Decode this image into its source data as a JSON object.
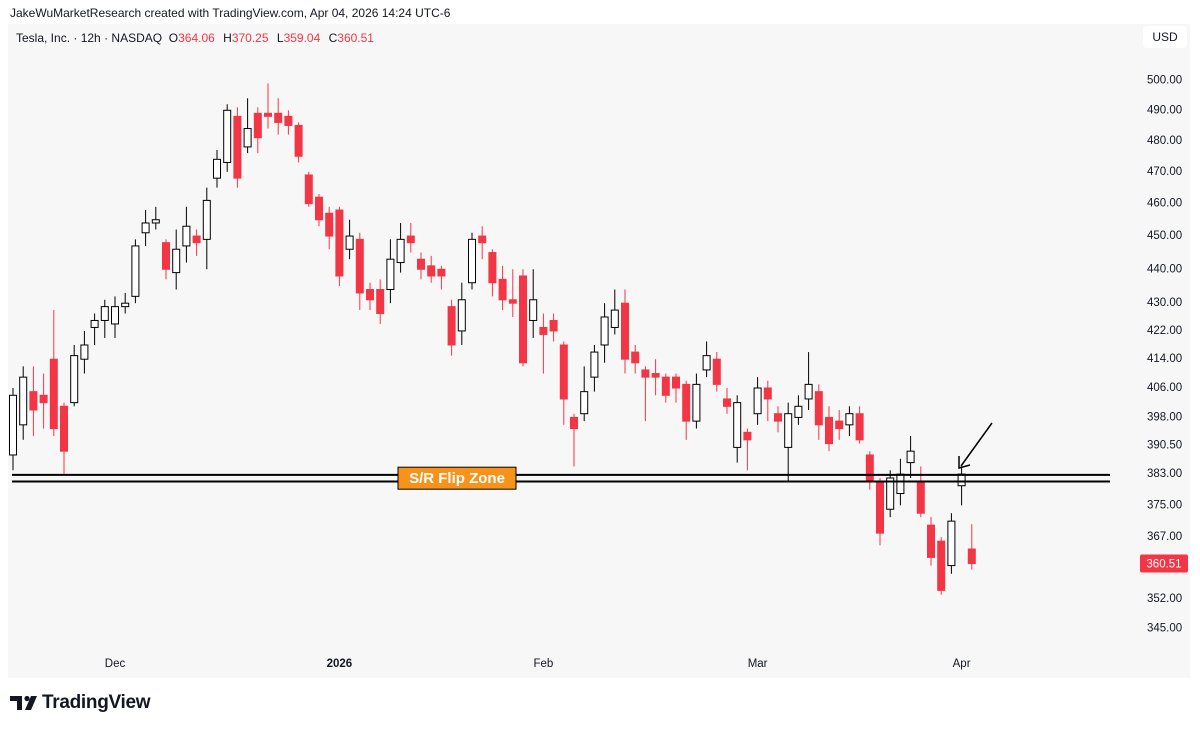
{
  "top_caption": "JakeWuMarketResearch created with TradingView.com, Apr 04, 2026 14:24 UTC-6",
  "footer_logo": "TradingView",
  "chart_data": {
    "type": "candlestick",
    "title": "Tesla, Inc.",
    "interval": "12h",
    "exchange": "NASDAQ",
    "ohlc_labels": [
      "O",
      "H",
      "L",
      "C"
    ],
    "currency": "USD",
    "log_scale": true,
    "grid": false,
    "up_color": "#ffffff",
    "up_border": "#000000",
    "down_color": "#f23645",
    "categories": [
      null,
      null,
      null,
      null,
      null,
      null,
      null,
      null,
      null,
      null,
      "Dec",
      null,
      null,
      null,
      null,
      null,
      null,
      null,
      null,
      null,
      null,
      null,
      null,
      null,
      null,
      null,
      null,
      null,
      null,
      null,
      null,
      null,
      "2026",
      null,
      null,
      null,
      null,
      null,
      null,
      null,
      null,
      null,
      null,
      null,
      null,
      null,
      null,
      null,
      null,
      null,
      null,
      null,
      "Feb",
      null,
      null,
      null,
      null,
      null,
      null,
      null,
      null,
      null,
      null,
      null,
      null,
      null,
      null,
      null,
      null,
      null,
      null,
      null,
      null,
      "Mar",
      null,
      null,
      null,
      null,
      null,
      null,
      null,
      null,
      null,
      null,
      null,
      null,
      null,
      null,
      null,
      null,
      null,
      null,
      null,
      "Apr",
      null
    ],
    "open": [
      388,
      396,
      405,
      404,
      414,
      401,
      402,
      414,
      423,
      425,
      424,
      429,
      432,
      451,
      454,
      448,
      439,
      447,
      450,
      449,
      468,
      473,
      488,
      478,
      489,
      489,
      489,
      488,
      485,
      469,
      462,
      457,
      458,
      446,
      449,
      434,
      434,
      434,
      442,
      450,
      443,
      441,
      440,
      429,
      422,
      436,
      450,
      445,
      437,
      431,
      438,
      425,
      423,
      425,
      418,
      398,
      399,
      409,
      418,
      423,
      430,
      416,
      411,
      410,
      409,
      409,
      407,
      397,
      411,
      414,
      403,
      390,
      394,
      399,
      406,
      399,
      390,
      398,
      403,
      405,
      398,
      397,
      396,
      399,
      388,
      381,
      374,
      378,
      386,
      381,
      370,
      366,
      360,
      380,
      364.06
    ],
    "high": [
      406,
      412,
      412,
      410,
      428,
      402,
      418,
      422,
      427,
      431,
      432,
      433,
      449,
      458,
      459,
      449,
      452,
      459,
      452,
      465,
      477,
      492,
      491,
      494,
      491,
      499,
      494,
      490,
      486,
      470,
      463,
      459,
      459,
      455,
      451,
      436,
      437,
      449,
      454,
      454,
      445,
      444,
      441,
      431,
      436,
      451,
      453,
      446,
      441,
      440,
      440,
      440,
      427,
      427,
      419,
      399,
      412,
      418,
      430,
      434,
      434,
      418,
      412,
      414,
      410,
      410,
      408,
      410,
      419,
      416,
      406,
      404,
      395,
      409,
      408,
      401,
      402,
      404,
      416,
      407,
      401,
      400,
      401,
      401,
      389,
      382,
      384,
      387,
      393,
      385,
      372,
      367,
      373,
      385,
      370.25
    ],
    "low": [
      384,
      392,
      393,
      395,
      393,
      383,
      401,
      410,
      418,
      420,
      420,
      427,
      430,
      447,
      452,
      437,
      434,
      442,
      444,
      440,
      465,
      470,
      465,
      476,
      476,
      484,
      482,
      482,
      473,
      459,
      453,
      446,
      435,
      443,
      428,
      428,
      424,
      430,
      439,
      445,
      437,
      436,
      434,
      415,
      418,
      434,
      443,
      432,
      428,
      426,
      412,
      420,
      410,
      419,
      396,
      385,
      397,
      405,
      413,
      421,
      410,
      410,
      397,
      404,
      402,
      402,
      392,
      395,
      409,
      405,
      399,
      386,
      384,
      396,
      397,
      394,
      381,
      396,
      400,
      392,
      389,
      392,
      393,
      391,
      379,
      365,
      372,
      375,
      382,
      372,
      360,
      353,
      358,
      375,
      359.04
    ],
    "close": [
      404,
      409,
      400,
      402,
      395,
      389,
      415,
      418,
      425,
      429,
      429,
      430,
      447,
      454,
      455,
      440,
      446,
      453,
      448,
      461,
      474,
      490,
      468,
      484,
      481,
      488,
      486,
      485,
      475,
      460,
      455,
      450,
      438,
      450,
      433,
      431,
      427,
      443,
      449,
      448,
      440,
      438,
      438,
      418,
      431,
      449,
      448,
      436,
      431,
      430,
      413,
      431,
      421,
      422,
      403,
      395,
      405,
      416,
      426,
      428,
      414,
      413,
      409,
      409,
      404,
      406,
      397,
      407,
      415,
      407,
      401,
      402,
      392,
      406,
      403,
      397,
      399,
      401,
      407,
      396,
      391,
      395,
      399,
      392,
      381,
      368,
      382,
      383,
      389,
      373,
      362,
      354,
      371,
      383,
      360.51
    ],
    "ylim": [
      340,
      512.5
    ],
    "yticks": [
      {
        "value": 345,
        "label": "345.00"
      },
      {
        "value": 352,
        "label": "352.00"
      },
      {
        "value": 360,
        "label": "360.00"
      },
      {
        "value": 367,
        "label": "367.00"
      },
      {
        "value": 375,
        "label": "375.00"
      },
      {
        "value": 383,
        "label": "383.00"
      },
      {
        "value": 390.5,
        "label": "390.50"
      },
      {
        "value": 398,
        "label": "398.00"
      },
      {
        "value": 406,
        "label": "406.00"
      },
      {
        "value": 414,
        "label": "414.00"
      },
      {
        "value": 422,
        "label": "422.00"
      },
      {
        "value": 430,
        "label": "430.00"
      },
      {
        "value": 440,
        "label": "440.00"
      },
      {
        "value": 450,
        "label": "450.00"
      },
      {
        "value": 460,
        "label": "460.00"
      },
      {
        "value": 470,
        "label": "470.00"
      },
      {
        "value": 480,
        "label": "480.00"
      },
      {
        "value": 490,
        "label": "490.00"
      },
      {
        "value": 500,
        "label": "500.00"
      }
    ],
    "zone": {
      "label": "S/R Flip Zone",
      "low": 381.1,
      "high": 382.8,
      "color": "#f7931a"
    }
  }
}
